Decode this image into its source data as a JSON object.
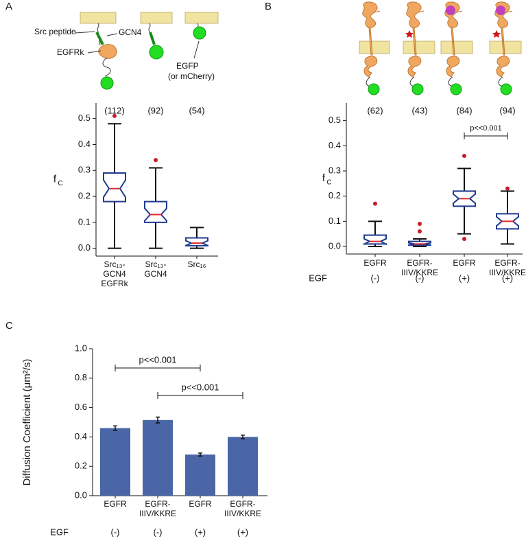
{
  "figure": {
    "panel_labels": [
      "A",
      "B",
      "C"
    ],
    "diagram_labels": [
      "Src peptide",
      "GCN4",
      "EGFRk",
      "EGFP",
      "(or mCherry)"
    ]
  },
  "chart_data": [
    {
      "type": "box",
      "ylabel": "f",
      "ylabel_sub": "C",
      "categories": [
        [
          "Src₁₃-",
          "GCN4",
          "EGFRk"
        ],
        [
          "Src₁₃-",
          "GCN4"
        ],
        [
          "Src₁₆"
        ]
      ],
      "counts": [
        "(112)",
        "(92)",
        "(54)"
      ],
      "boxes": [
        {
          "low": 0.0,
          "q1": 0.18,
          "median": 0.23,
          "q3": 0.29,
          "high": 0.48,
          "outliers": [
            0.51
          ]
        },
        {
          "low": 0.0,
          "q1": 0.1,
          "median": 0.13,
          "q3": 0.18,
          "high": 0.31,
          "outliers": [
            0.34
          ]
        },
        {
          "low": 0.0,
          "q1": 0.01,
          "median": 0.02,
          "q3": 0.04,
          "high": 0.08,
          "outliers": []
        }
      ],
      "box_color": "#1f3a8f",
      "median_color": "#e02828",
      "outlier_color": "#c41e2a",
      "ylim": [
        -0.03,
        0.56
      ],
      "yticks": [
        {
          "value": 0,
          "label": "0.0"
        },
        0.1,
        0.2,
        0.3,
        0.4,
        0.5
      ]
    },
    {
      "type": "box",
      "ylabel": "f",
      "ylabel_sub": "C",
      "categories": [
        [
          "EGFR"
        ],
        [
          "EGFR-",
          "IIIV/KKRE"
        ],
        [
          "EGFR"
        ],
        [
          "EGFR-",
          "IIIV/KKRE"
        ]
      ],
      "counts": [
        "(62)",
        "(43)",
        "(84)",
        "(94)"
      ],
      "row_label": "EGF",
      "row_values": [
        "(-)",
        "(-)",
        "(+)",
        "(+)"
      ],
      "boxes": [
        {
          "low": 0.0,
          "q1": 0.01,
          "median": 0.02,
          "q3": 0.045,
          "high": 0.1,
          "outliers": [
            0.17
          ]
        },
        {
          "low": 0.0,
          "q1": 0.005,
          "median": 0.01,
          "q3": 0.02,
          "high": 0.03,
          "outliers": [
            0.09,
            0.06
          ]
        },
        {
          "low": 0.05,
          "q1": 0.16,
          "median": 0.19,
          "q3": 0.22,
          "high": 0.31,
          "outliers": [
            0.36,
            0.03
          ]
        },
        {
          "low": 0.01,
          "q1": 0.07,
          "median": 0.1,
          "q3": 0.13,
          "high": 0.22,
          "outliers": [
            0.23
          ]
        }
      ],
      "significance": [
        {
          "from": 2,
          "to": 3,
          "label": "p<<0.001"
        }
      ],
      "box_color": "#1f3a8f",
      "median_color": "#e02828",
      "outlier_color": "#c41e2a",
      "ylim": [
        -0.03,
        0.57
      ],
      "yticks": [
        {
          "value": 0,
          "label": "0.0"
        },
        0.1,
        0.2,
        0.3,
        0.4,
        0.5
      ]
    },
    {
      "type": "bar",
      "ylabel": "Diffusion Coefficient (μm²/s)",
      "categories": [
        [
          "EGFR"
        ],
        [
          "EGFR-",
          "IIIV/KKRE"
        ],
        [
          "EGFR"
        ],
        [
          "EGFR-",
          "IIIV/KKRE"
        ]
      ],
      "row_label": "EGF",
      "row_values": [
        "(-)",
        "(-)",
        "(+)",
        "(+)"
      ],
      "values": [
        0.46,
        0.515,
        0.28,
        0.4
      ],
      "errors": [
        0.015,
        0.02,
        0.01,
        0.012
      ],
      "color": "#4a66a6",
      "significance": [
        {
          "from": 0,
          "to": 2,
          "label": "p<<0.001"
        },
        {
          "from": 1,
          "to": 3,
          "label": "p<<0.001"
        }
      ],
      "ylim": [
        0,
        1.0
      ],
      "yticks": [
        {
          "value": 0,
          "label": "0.0"
        },
        {
          "value": 0.2,
          "label": "0.2"
        },
        {
          "value": 0.4,
          "label": "0.4"
        },
        {
          "value": 0.6,
          "label": "0.6"
        },
        {
          "value": 0.8,
          "label": "0.8"
        },
        {
          "value": 1.0,
          "label": "1.0"
        }
      ]
    }
  ]
}
